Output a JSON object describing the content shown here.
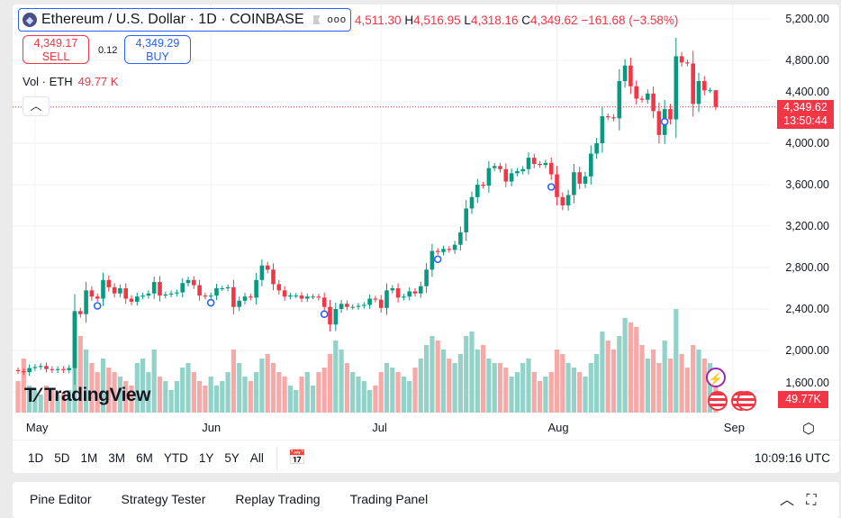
{
  "header": {
    "symbol": "Ethereum / U.S. Dollar",
    "interval_exchange": "· 1D · COINBASE",
    "more": "ooo",
    "ohlc": {
      "o_label": "O",
      "o": "4,511.30",
      "h_label": "H",
      "h": "4,516.95",
      "l_label": "L",
      "l": "4,318.16",
      "c_label": "C",
      "c": "4,349.62",
      "change": "−161.68 (−3.58%)"
    }
  },
  "trade": {
    "sell_price": "4,349.17",
    "sell_label": "SELL",
    "spread": "0.12",
    "buy_price": "4,349.29",
    "buy_label": "BUY"
  },
  "volume_legend": {
    "label": "Vol · ETH",
    "value": "49.77 K"
  },
  "price_tag": {
    "price": "4,349.62",
    "countdown": "13:50:44"
  },
  "volume_tag": "49.77K",
  "logo": "TradingView",
  "colors": {
    "up": "#089981",
    "down": "#f23645",
    "up_vol": "#92d2c8",
    "down_vol": "#f7a9a7",
    "accent": "#2962ff"
  },
  "chart_data": {
    "type": "candlestick",
    "title": "Ethereum / U.S. Dollar · 1D · COINBASE",
    "start_date": "Apr 28",
    "end_date": "Aug 29",
    "y_ticks": [
      "5,200.00",
      "4,800.00",
      "4,400.00",
      "4,000.00",
      "3,600.00",
      "3,200.00",
      "2,800.00",
      "2,400.00",
      "2,000.00",
      "1,600.00"
    ],
    "y_tick_values": [
      5200,
      4800,
      4400,
      4000,
      3600,
      3200,
      2800,
      2400,
      2000,
      1600
    ],
    "ylim": [
      1560,
      5240
    ],
    "x_ticks": [
      "May",
      "Jun",
      "Jul",
      "Aug",
      "Sep"
    ],
    "x_tick_indices": [
      3,
      34,
      64,
      95,
      126
    ],
    "first_open": 1810,
    "last": {
      "open": 4511.3,
      "high": 4516.95,
      "low": 4318.16,
      "close": 4349.62
    },
    "close": [
      1800,
      1790,
      1830,
      1840,
      1850,
      1820,
      1810,
      1820,
      1810,
      1830,
      2380,
      2350,
      2580,
      2520,
      2500,
      2680,
      2610,
      2550,
      2600,
      2500,
      2470,
      2520,
      2530,
      2550,
      2660,
      2530,
      2540,
      2550,
      2560,
      2650,
      2680,
      2630,
      2530,
      2520,
      2530,
      2600,
      2600,
      2610,
      2420,
      2480,
      2520,
      2510,
      2680,
      2820,
      2780,
      2640,
      2580,
      2520,
      2530,
      2530,
      2500,
      2520,
      2520,
      2510,
      2420,
      2250,
      2400,
      2450,
      2420,
      2420,
      2430,
      2440,
      2500,
      2490,
      2410,
      2580,
      2600,
      2510,
      2520,
      2570,
      2550,
      2620,
      2780,
      2960,
      2950,
      2980,
      2970,
      3020,
      3140,
      3370,
      3480,
      3600,
      3590,
      3760,
      3780,
      3750,
      3630,
      3710,
      3730,
      3750,
      3860,
      3800,
      3790,
      3810,
      3700,
      3480,
      3400,
      3500,
      3720,
      3610,
      3680,
      3900,
      4000,
      4260,
      4250,
      4240,
      4600,
      4750,
      4550,
      4430,
      4420,
      4480,
      4310,
      4080,
      4330,
      4230,
      4840,
      4780,
      4770,
      4380,
      4600,
      4510,
      4511.3,
      4349.62
    ],
    "volume_k": [
      35,
      60,
      30,
      25,
      20,
      30,
      25,
      20,
      22,
      25,
      110,
      85,
      70,
      55,
      45,
      60,
      50,
      45,
      40,
      35,
      30,
      55,
      60,
      45,
      70,
      40,
      35,
      25,
      35,
      50,
      55,
      45,
      35,
      30,
      40,
      30,
      35,
      45,
      70,
      55,
      40,
      35,
      45,
      60,
      65,
      55,
      45,
      40,
      30,
      25,
      40,
      45,
      30,
      45,
      50,
      65,
      80,
      70,
      55,
      45,
      40,
      35,
      25,
      30,
      45,
      55,
      50,
      45,
      40,
      35,
      50,
      60,
      75,
      85,
      80,
      70,
      60,
      55,
      65,
      85,
      90,
      70,
      75,
      60,
      55,
      55,
      50,
      40,
      45,
      55,
      60,
      45,
      35,
      40,
      45,
      70,
      65,
      55,
      50,
      45,
      40,
      55,
      65,
      90,
      80,
      70,
      85,
      105,
      100,
      95,
      75,
      60,
      70,
      55,
      80,
      60,
      115,
      65,
      50,
      75,
      70,
      60,
      55,
      49.77
    ],
    "event_indices": [
      14,
      34,
      54,
      74,
      94,
      114
    ]
  },
  "range_buttons": [
    "1D",
    "5D",
    "1M",
    "3M",
    "6M",
    "YTD",
    "1Y",
    "5Y",
    "All"
  ],
  "clock": "10:09:16 UTC",
  "bottom_tabs": [
    "Pine Editor",
    "Strategy Tester",
    "Replay Trading",
    "Trading Panel"
  ]
}
